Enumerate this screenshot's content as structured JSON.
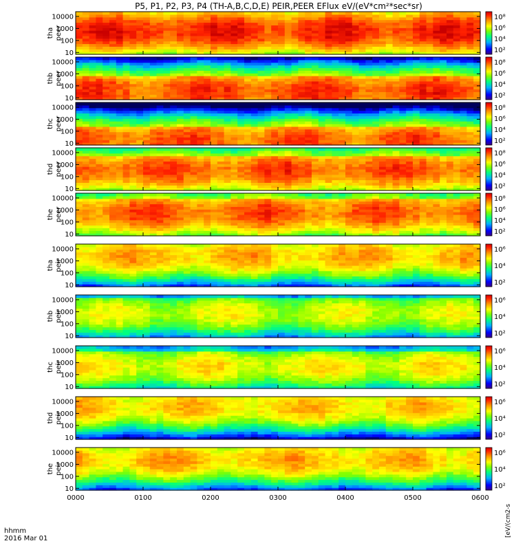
{
  "chart_data": {
    "type": "heatmap",
    "title": "P5, P1, P2, P3, P4 (TH-A,B,C,D,E) PEIR,PEER EFlux eV/(eV*cm²*sec*sr)",
    "xlabel_line1": "hhmm",
    "xlabel_line2": "2016 Mar 01",
    "x_ticks": [
      "0000",
      "0100",
      "0200",
      "0300",
      "0400",
      "0500",
      "0600"
    ],
    "xlim_hours": [
      0,
      6
    ],
    "y_scale": "log",
    "y_ticks": [
      "10",
      "100",
      "1000",
      "10000"
    ],
    "colorbar_title": "[eV/(cm2-s",
    "panels": [
      {
        "probe": "tha",
        "species": "peer",
        "ylim": [
          7,
          25000
        ],
        "peak_log_energy": 2.8,
        "intensity": 0.92,
        "cbar_ticks": [
          "10⁸",
          "10⁶",
          "10⁴",
          "10²"
        ]
      },
      {
        "probe": "thb",
        "species": "peer",
        "ylim": [
          7,
          25000
        ],
        "peak_log_energy": 1.6,
        "intensity": 0.88,
        "cbar_ticks": [
          "10⁸",
          "10⁶",
          "10⁴",
          "10²"
        ]
      },
      {
        "probe": "thc",
        "species": "peer",
        "ylim": [
          7,
          25000
        ],
        "peak_log_energy": 1.3,
        "intensity": 0.85,
        "cbar_ticks": [
          "10⁸",
          "10⁶",
          "10⁴",
          "10²"
        ]
      },
      {
        "probe": "thd",
        "species": "peer",
        "ylim": [
          7,
          25000
        ],
        "peak_log_energy": 2.6,
        "intensity": 0.86,
        "cbar_ticks": [
          "10⁸",
          "10⁶",
          "10⁴",
          "10²"
        ]
      },
      {
        "probe": "the",
        "species": "peer",
        "ylim": [
          7,
          25000
        ],
        "peak_log_energy": 2.8,
        "intensity": 0.85,
        "cbar_ticks": [
          "10⁸",
          "10⁶",
          "10⁴",
          "10²"
        ]
      },
      {
        "probe": "tha",
        "species": "peir",
        "ylim": [
          7,
          25000
        ],
        "peak_log_energy": 3.4,
        "intensity": 0.74,
        "cbar_ticks": [
          "10⁶",
          "10⁴",
          "10²"
        ]
      },
      {
        "probe": "thb",
        "species": "peir",
        "ylim": [
          7,
          25000
        ],
        "peak_log_energy": 2.9,
        "intensity": 0.62,
        "cbar_ticks": [
          "10⁶",
          "10⁴",
          "10²"
        ]
      },
      {
        "probe": "thc",
        "species": "peir",
        "ylim": [
          7,
          25000
        ],
        "peak_log_energy": 2.7,
        "intensity": 0.66,
        "cbar_ticks": [
          "10⁶",
          "10⁴",
          "10²"
        ]
      },
      {
        "probe": "thd",
        "species": "peir",
        "ylim": [
          7,
          25000
        ],
        "peak_log_energy": 3.6,
        "intensity": 0.72,
        "cbar_ticks": [
          "10⁶",
          "10⁴",
          "10²"
        ]
      },
      {
        "probe": "the",
        "species": "peir",
        "ylim": [
          7,
          25000
        ],
        "peak_log_energy": 3.4,
        "intensity": 0.74,
        "cbar_ticks": [
          "10⁶",
          "10⁴",
          "10²"
        ]
      }
    ]
  }
}
